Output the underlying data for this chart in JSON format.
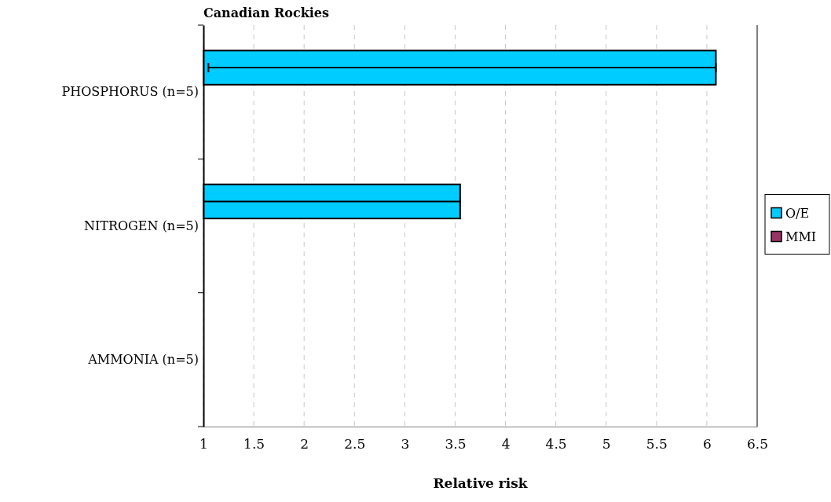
{
  "chart_data": {
    "type": "bar",
    "orientation": "horizontal",
    "title": "Canadian Rockies",
    "xlabel": "Relative risk",
    "categories": [
      "PHOSPHORUS (n=5)",
      "NITROGEN (n=5)",
      "AMMONIA (n=5)"
    ],
    "series": [
      {
        "name": "O/E",
        "color": "#00ccff",
        "values": [
          6.09,
          3.55,
          null
        ],
        "errors": [
          [
            1.05,
            6.09
          ],
          [
            1.0,
            3.55
          ],
          null
        ]
      },
      {
        "name": "MMI",
        "color": "#993366",
        "values": [
          null,
          null,
          null
        ]
      }
    ],
    "xlim": [
      1,
      6.5
    ],
    "xticks": [
      1,
      1.5,
      2,
      2.5,
      3,
      3.5,
      4,
      4.5,
      5,
      5.5,
      6,
      6.5
    ],
    "grid": "x",
    "legend": "right"
  }
}
